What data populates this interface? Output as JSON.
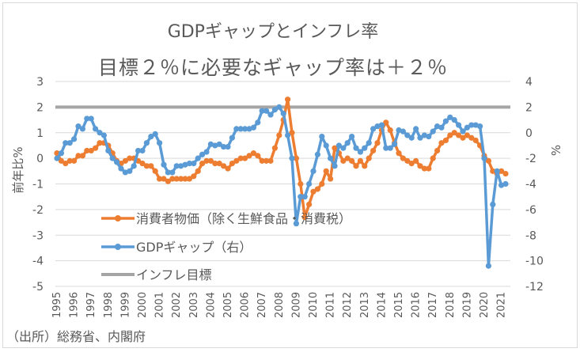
{
  "title": "GDPギャップとインフレ率",
  "subtitle": "目標２％に必要なギャップ率は＋２％",
  "source": "（出所）総務省、内閣府",
  "chart_data": {
    "type": "line",
    "title": "GDPギャップとインフレ率",
    "subtitle": "目標２％に必要なギャップ率は＋２％",
    "ylabel": "前年比%",
    "y2label": "%",
    "ylim": [
      -5,
      3
    ],
    "y2lim": [
      -12,
      4
    ],
    "yticks": [
      "3",
      "2",
      "1",
      "0",
      "-1",
      "-2",
      "-3",
      "-4",
      "-5"
    ],
    "y2ticks": [
      "4",
      "2",
      "0",
      "-2",
      "-4",
      "-6",
      "-8",
      "-10",
      "-12"
    ],
    "xticks": [
      "1995",
      "1996",
      "1997",
      "1998",
      "1999",
      "2000",
      "2001",
      "2002",
      "2003",
      "2004",
      "2005",
      "2006",
      "2007",
      "2008",
      "2009",
      "2010",
      "2011",
      "2012",
      "2013",
      "2014",
      "2015",
      "2016",
      "2017",
      "2018",
      "2019",
      "2020",
      "2021"
    ],
    "x_frequency": "quarterly, 1995Q1–2021Q2",
    "grid": true,
    "legend_position": "lower-left inside",
    "series": [
      {
        "name": "消費者物価（除く生鮮食品・消費税）",
        "axis": "left",
        "color": "#ed7d31",
        "marker": "circle",
        "values": [
          0.2,
          -0.1,
          -0.2,
          -0.1,
          -0.1,
          0.1,
          0.1,
          0.3,
          0.3,
          0.4,
          0.6,
          0.6,
          0.5,
          0.2,
          -0.1,
          -0.2,
          -0.1,
          0.0,
          0.0,
          -0.1,
          -0.2,
          -0.3,
          -0.3,
          -0.5,
          -0.8,
          -0.8,
          -0.9,
          -0.8,
          -0.8,
          -0.8,
          -0.8,
          -0.8,
          -0.7,
          -0.5,
          -0.2,
          -0.1,
          -0.1,
          -0.2,
          -0.2,
          -0.3,
          -0.4,
          -0.2,
          -0.1,
          0.0,
          0.0,
          0.1,
          0.2,
          0.1,
          -0.1,
          -0.1,
          -0.1,
          0.4,
          0.9,
          1.5,
          2.3,
          1.0,
          0.0,
          -1.0,
          -2.3,
          -1.8,
          -1.3,
          -1.2,
          -1.0,
          -0.5,
          -0.8,
          0.4,
          0.2,
          -0.1,
          0.0,
          -0.1,
          -0.3,
          -0.1,
          -0.3,
          0.0,
          0.3,
          0.6,
          1.1,
          1.4,
          1.1,
          0.6,
          0.2,
          0.0,
          -0.1,
          -0.2,
          -0.1,
          -0.3,
          -0.4,
          -0.4,
          0.0,
          0.3,
          0.6,
          0.7,
          0.9,
          1.0,
          0.9,
          0.8,
          0.9,
          0.8,
          0.7,
          0.5,
          0.1,
          -0.1,
          -0.5,
          -0.6,
          -0.5,
          -0.6
        ]
      },
      {
        "name": "GDPギャップ（右）",
        "axis": "right",
        "color": "#5b9bd5",
        "marker": "circle",
        "values": [
          -2.0,
          -1.6,
          -0.8,
          -0.8,
          -0.5,
          0.5,
          0.3,
          1.1,
          1.1,
          0.3,
          0.0,
          -0.2,
          -1.4,
          -2.0,
          -2.3,
          -2.8,
          -3.1,
          -3.0,
          -2.6,
          -1.4,
          -1.4,
          -0.8,
          -0.3,
          -0.1,
          -0.8,
          -2.5,
          -3.1,
          -3.1,
          -2.6,
          -2.6,
          -2.5,
          -2.4,
          -2.4,
          -2.0,
          -1.7,
          -1.5,
          -0.9,
          -1.0,
          -0.9,
          -1.1,
          -1.1,
          -0.4,
          0.3,
          0.3,
          0.3,
          0.3,
          0.4,
          0.8,
          1.7,
          1.7,
          1.4,
          1.8,
          2.0,
          1.5,
          -0.2,
          -2.0,
          -7.1,
          -5.0,
          -5.0,
          -4.0,
          -3.0,
          -1.7,
          -0.3,
          -1.0,
          -2.0,
          -2.6,
          -1.0,
          -1.2,
          -0.8,
          -0.3,
          -1.2,
          -1.5,
          -1.2,
          -0.8,
          0.3,
          0.5,
          0.6,
          -1.2,
          -1.2,
          -0.9,
          0.2,
          0.1,
          -0.2,
          -0.4,
          0.3,
          -0.4,
          -0.2,
          -0.3,
          0.1,
          0.5,
          0.4,
          0.9,
          1.2,
          1.0,
          0.6,
          0.1,
          0.4,
          0.6,
          0.6,
          0.5,
          -2.0,
          -10.4,
          -5.6,
          -3.0,
          -4.1,
          -4.0
        ]
      },
      {
        "name": "インフレ目標",
        "axis": "left",
        "color": "#a5a5a5",
        "constant": 2
      }
    ]
  }
}
